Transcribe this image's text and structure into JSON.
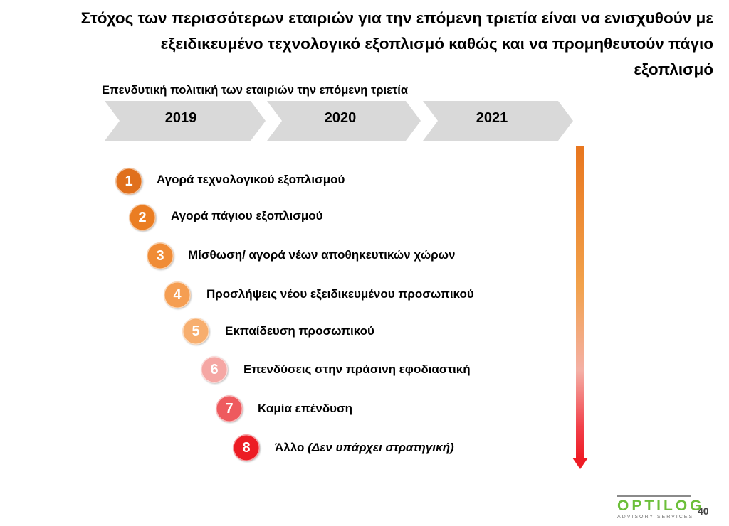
{
  "title": {
    "line1": "Στόχος των περισσότερων εταιριών για την επόμενη τριετία είναι να ενισχυθούν με",
    "line2": "εξειδικευμένο τεχνολογικό εξοπλισμό καθώς και να προμηθευτούν πάγιο",
    "line3": "εξοπλισμό"
  },
  "subtitle": "Επενδυτική πολιτική των εταιριών την επόμενη τριετία",
  "years": [
    "2019",
    "2020",
    "2021"
  ],
  "items": [
    {
      "num": "1",
      "label": "Αγορά τεχνολογικού εξοπλισμού",
      "color": "#e0701c"
    },
    {
      "num": "2",
      "label": "Αγορά πάγιου εξοπλισμού",
      "color": "#ea7d22"
    },
    {
      "num": "3",
      "label": "Μίσθωση/ αγορά νέων αποθηκευτικών χώρων",
      "color": "#f08c36"
    },
    {
      "num": "4",
      "label": "Προσλήψεις νέου εξειδικευμένου προσωπικού",
      "color": "#f59e52"
    },
    {
      "num": "5",
      "label": "Εκπαίδευση προσωπικού",
      "color": "#f7ae6e"
    },
    {
      "num": "6",
      "label": "Επενδύσεις στην πράσινη εφοδιαστική",
      "color": "#f5a7a4"
    },
    {
      "num": "7",
      "label": "Καμία επένδυση",
      "color": "#ee5a5e"
    },
    {
      "num": "8",
      "label": "Άλλο",
      "label_italic": "(Δεν υπάρχει στρατηγική)",
      "color": "#ec1c24"
    }
  ],
  "logo": {
    "name": "OPTILOG",
    "tagline": "ADVISORY SERVICES"
  },
  "page_number": "40"
}
